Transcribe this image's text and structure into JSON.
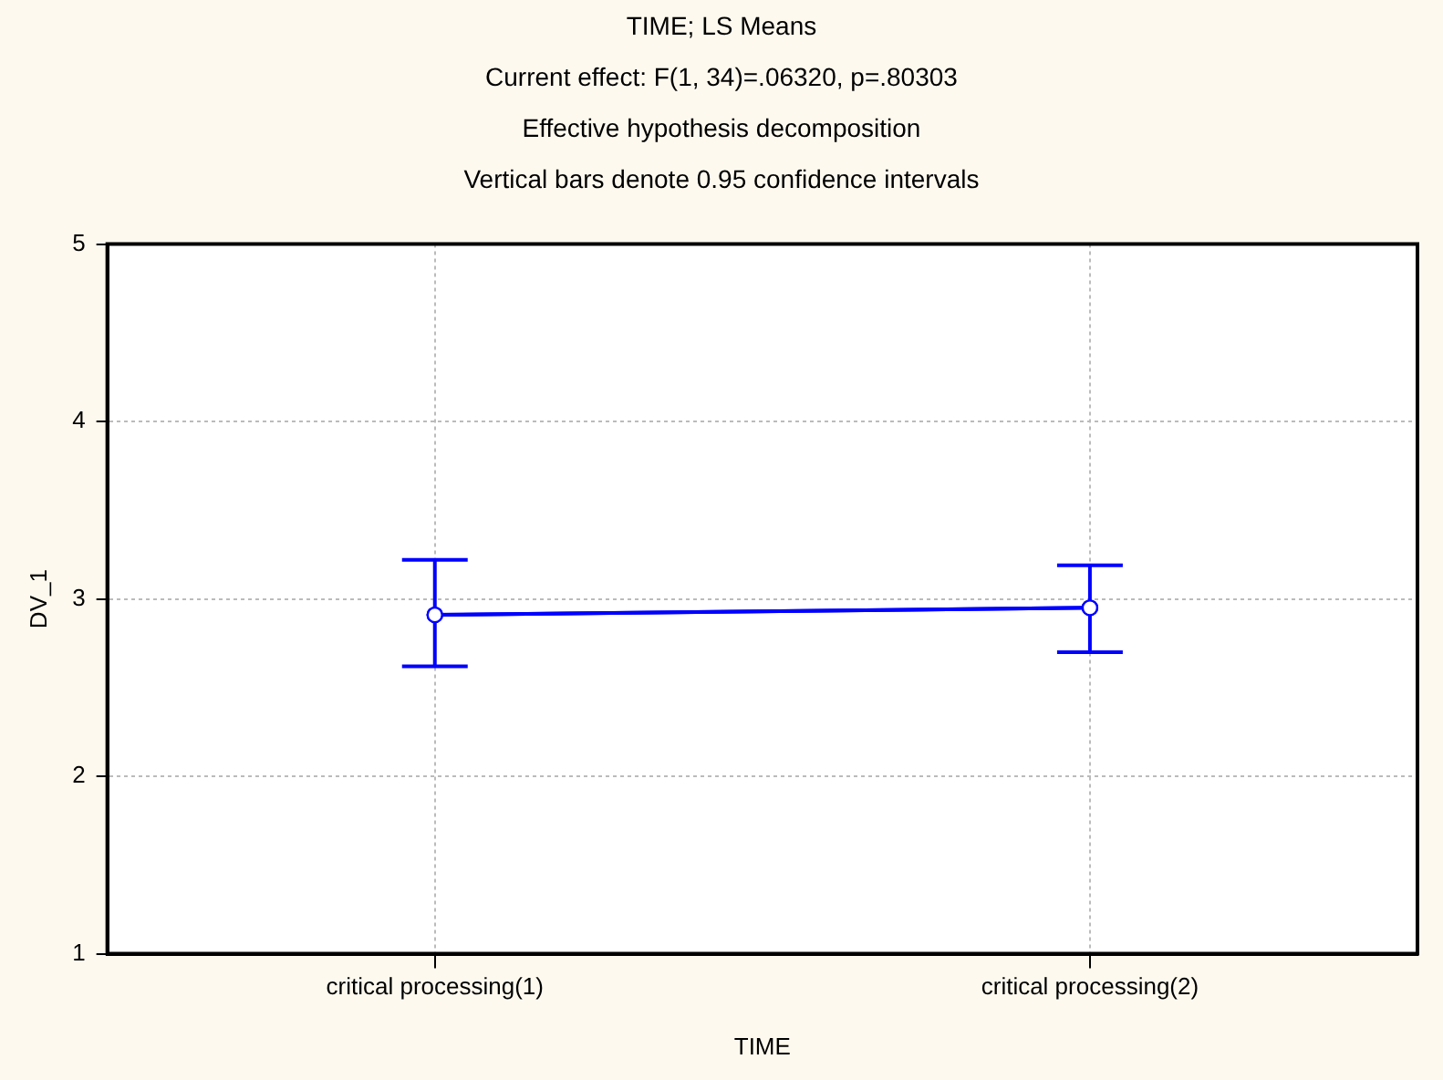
{
  "chart_data": {
    "type": "line",
    "title": "TIME; LS Means",
    "subtitle": "Current effect: F(1, 34)=.06320, p=.80303",
    "annotations": [
      "Effective hypothesis decomposition",
      "Vertical bars denote 0.95 confidence intervals"
    ],
    "xlabel": "TIME",
    "ylabel": "DV_1",
    "categories": [
      "critical processing(1)",
      "critical processing(2)"
    ],
    "series": [
      {
        "color": "#0000ff",
        "values": [
          2.91,
          2.95
        ],
        "errors": [
          [
            2.62,
            3.22
          ],
          [
            2.7,
            3.19
          ]
        ]
      }
    ],
    "ylim": [
      1,
      5
    ],
    "yticks": [
      1,
      2,
      3,
      4,
      5
    ],
    "grid": true,
    "legend": false,
    "marker": "circle",
    "line_style": "solid"
  }
}
